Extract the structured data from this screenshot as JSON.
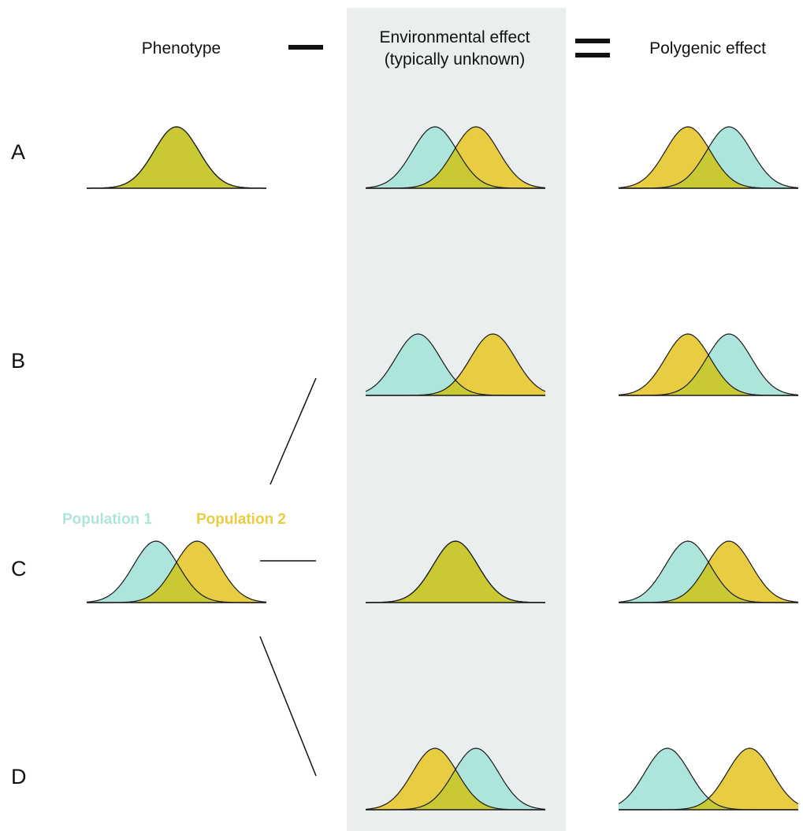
{
  "headers": {
    "phenotype": "Phenotype",
    "environment_line1": "Environmental effect",
    "environment_line2": "(typically unknown)",
    "polygenic": "Polygenic effect"
  },
  "rows": [
    "A",
    "B",
    "C",
    "D"
  ],
  "legend": {
    "population1": "Population 1",
    "population2": "Population 2"
  },
  "colors": {
    "population1": "#ade5dd",
    "population2": "#e8cd43",
    "overlap": "#c8c933",
    "panel_background": "#eaeeee",
    "outline": "#1a1a1a"
  },
  "symbols": {
    "minus": "minus-sign",
    "equals": "equals-sign"
  },
  "distributions": {
    "phenotype": [
      {
        "row": "A",
        "pop1_mean": 0.0,
        "pop2_mean": 0.0
      },
      {
        "row": "C",
        "pop1_mean": -0.55,
        "pop2_mean": 0.55
      }
    ],
    "environment": [
      {
        "row": "A",
        "pop1_mean": -0.55,
        "pop2_mean": 0.55
      },
      {
        "row": "B",
        "pop1_mean": -1.0,
        "pop2_mean": 1.0
      },
      {
        "row": "C",
        "pop1_mean": 0.0,
        "pop2_mean": 0.0
      },
      {
        "row": "D",
        "pop1_mean": 0.55,
        "pop2_mean": -0.55
      }
    ],
    "polygenic": [
      {
        "row": "A",
        "pop1_mean": 0.55,
        "pop2_mean": -0.55
      },
      {
        "row": "B",
        "pop1_mean": 0.55,
        "pop2_mean": -0.55
      },
      {
        "row": "C",
        "pop1_mean": -0.55,
        "pop2_mean": 0.55
      },
      {
        "row": "D",
        "pop1_mean": -1.1,
        "pop2_mean": 1.1
      }
    ]
  }
}
